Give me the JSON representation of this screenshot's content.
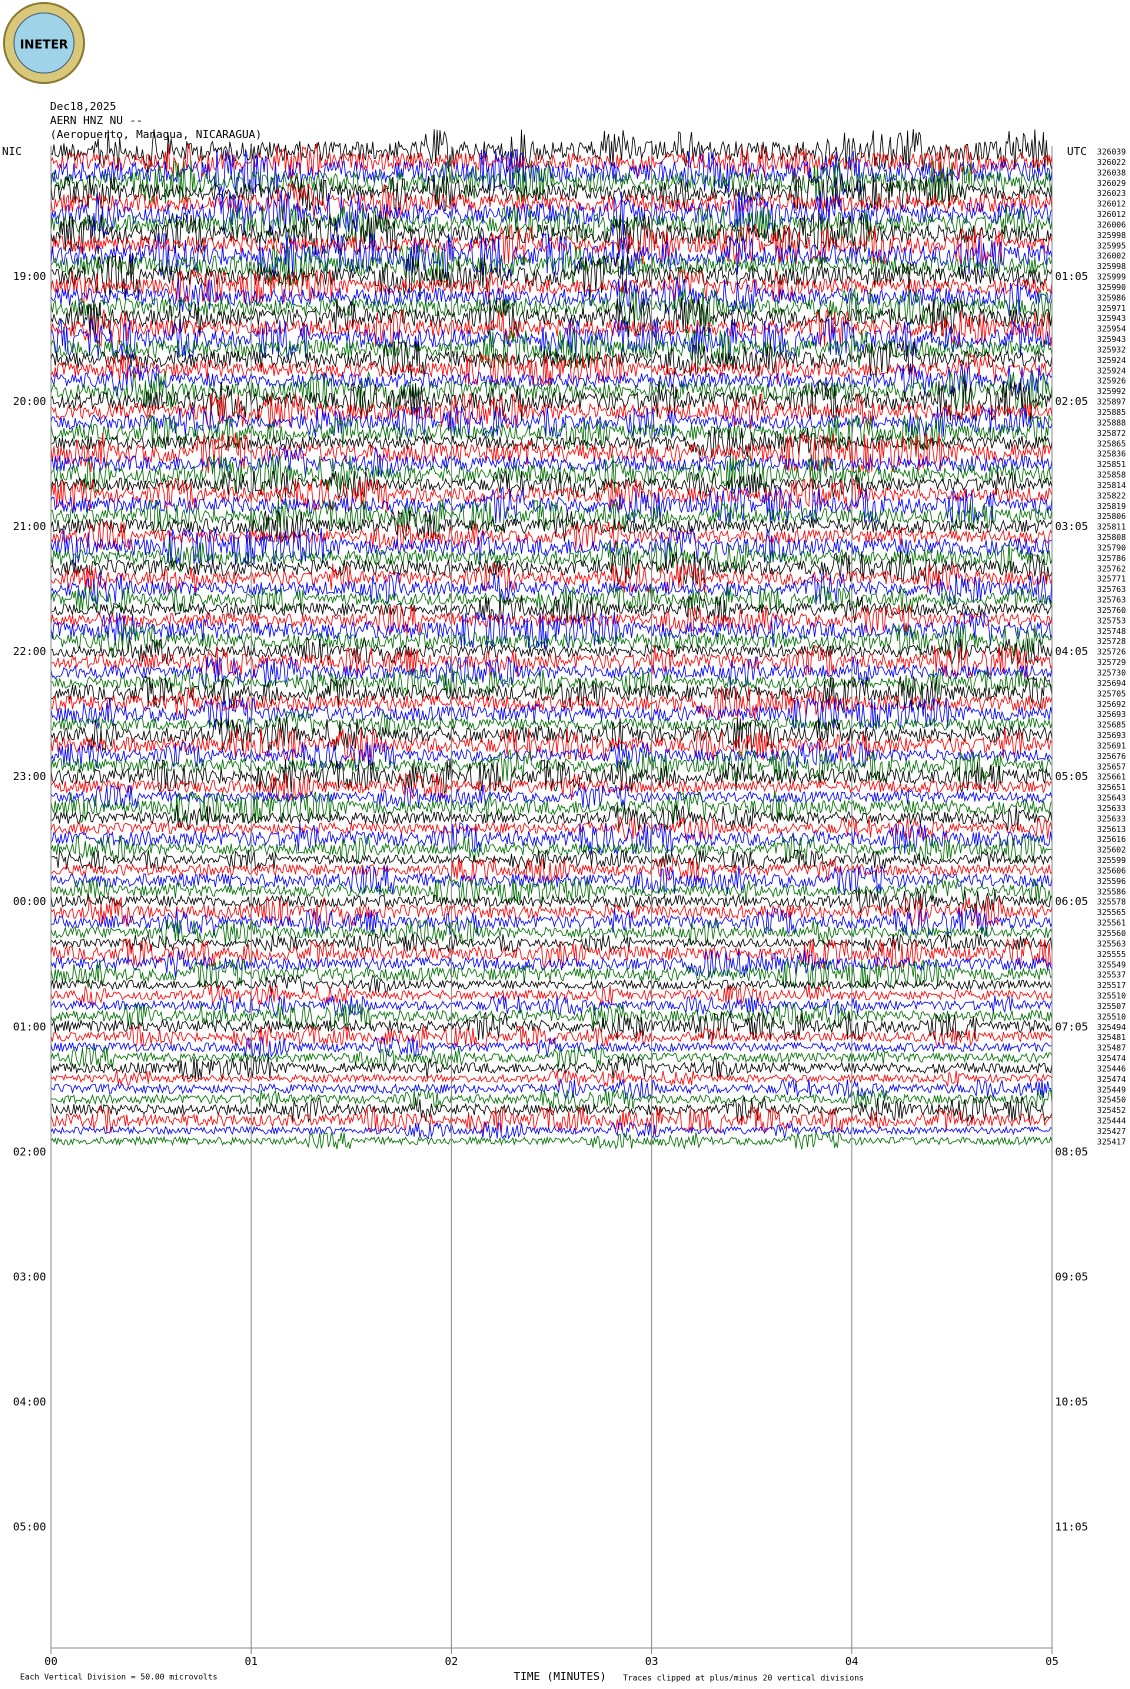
{
  "logo": "INETER",
  "chart_data": {
    "type": "helicorder",
    "header": [
      "Dec18,2025",
      "AERN HNZ NU --",
      "(Aeropuerto, Managua, NICARAGUA)"
    ],
    "left_label": "NIC",
    "right_label": "UTC",
    "left_hours": [
      "19:00",
      "20:00",
      "21:00",
      "22:00",
      "23:00",
      "00:00",
      "01:00",
      "02:00",
      "03:00",
      "04:00",
      "05:00"
    ],
    "right_hours": [
      "01:05",
      "02:05",
      "03:05",
      "04:05",
      "05:05",
      "06:05",
      "07:05",
      "08:05",
      "09:05",
      "10:05",
      "11:05"
    ],
    "rows_per_hour": 12,
    "row_values": [
      326039,
      326022,
      326038,
      326029,
      326023,
      326012,
      326012,
      326006,
      325998,
      325995,
      326002,
      325998,
      325999,
      325990,
      325986,
      325971,
      325943,
      325954,
      325943,
      325932,
      325924,
      325924,
      325926,
      325992,
      325897,
      325885,
      325888,
      325872,
      325865,
      325836,
      325851,
      325858,
      325814,
      325822,
      325819,
      325806,
      325811,
      325808,
      325790,
      325786,
      325762,
      325771,
      325763,
      325763,
      325760,
      325753,
      325748,
      325728,
      325726,
      325729,
      325730,
      325694,
      325705,
      325692,
      325693,
      325685,
      325693,
      325691,
      325676,
      325657,
      325661,
      325651,
      325643,
      325633,
      325633,
      325613,
      325616,
      325602,
      325599,
      325606,
      325596,
      325586,
      325578,
      325565,
      325561,
      325560,
      325563,
      325555,
      325549,
      325537,
      325517,
      325510,
      325507,
      325510,
      325494,
      325481,
      325487,
      325474,
      325446,
      325474,
      325449,
      325450,
      325452,
      325444,
      325427,
      325417
    ],
    "colors": [
      "#000000",
      "#ff0000",
      "#0000ff",
      "#007000"
    ],
    "xlabel": "TIME (MINUTES)",
    "xlim": [
      0,
      5
    ],
    "xticks": [
      {
        "value": 0,
        "label": "00"
      },
      {
        "value": 1,
        "label": "01"
      },
      {
        "value": 2,
        "label": "02"
      },
      {
        "value": 3,
        "label": "03"
      },
      {
        "value": 4,
        "label": "04"
      },
      {
        "value": 5,
        "label": "05"
      }
    ],
    "scale_note": "Each Vertical Division =   50.00 microvolts",
    "clip_note": "Traces clipped at plus/minus 20 vertical divisions"
  }
}
